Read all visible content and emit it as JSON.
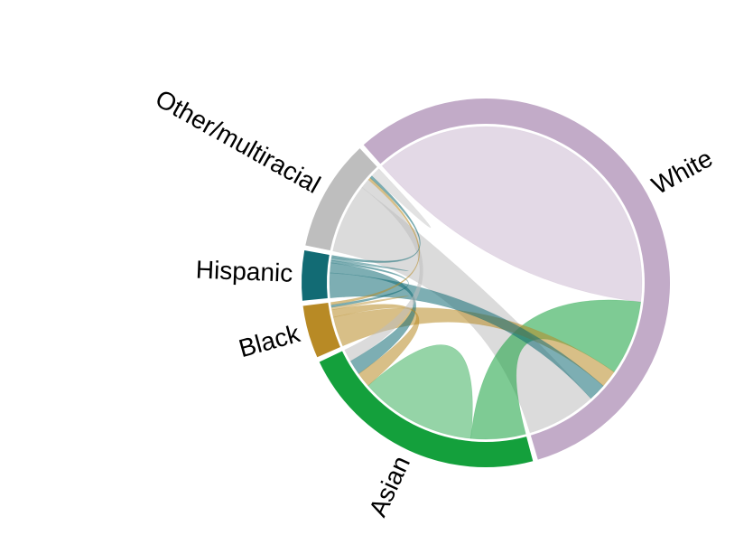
{
  "chart_data": {
    "type": "chord",
    "title": "",
    "groups": [
      {
        "name": "White",
        "color": "#c2abc8"
      },
      {
        "name": "Asian",
        "color": "#14a03c"
      },
      {
        "name": "Black",
        "color": "#b88a25"
      },
      {
        "name": "Hispanic",
        "color": "#126b74"
      },
      {
        "name": "Other/multiracial",
        "color": "#bebebe"
      }
    ],
    "matrix": [
      [
        150,
        30,
        7,
        7,
        28
      ],
      [
        22,
        47,
        6,
        6,
        5
      ],
      [
        12,
        3,
        1,
        1,
        1
      ],
      [
        10,
        4,
        1,
        1,
        1
      ],
      [
        28,
        4,
        1,
        1,
        4
      ]
    ]
  }
}
